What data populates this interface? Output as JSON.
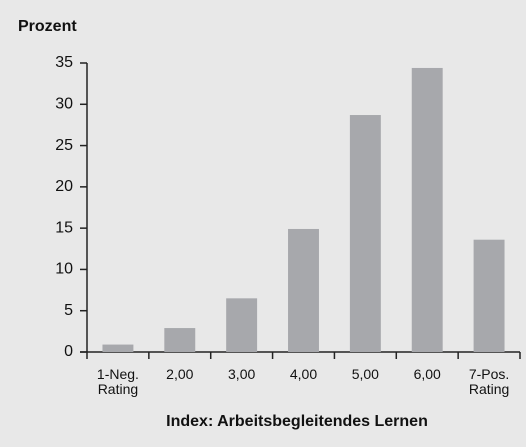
{
  "chart_data": {
    "type": "bar",
    "title": "Prozent",
    "x_label": "Index: Arbeitsbegleitendes Lernen",
    "categories": [
      "1-Neg. Rating",
      "2,00",
      "3,00",
      "4,00",
      "5,00",
      "6,00",
      "7-Pos. Rating"
    ],
    "values": [
      0.9,
      2.9,
      6.5,
      14.9,
      28.7,
      34.4,
      13.6
    ],
    "color": "#a7a8ac",
    "ylim": [
      0,
      35
    ],
    "yticks": [
      0,
      5,
      10,
      15,
      20,
      25,
      30,
      35
    ],
    "grid": false
  }
}
